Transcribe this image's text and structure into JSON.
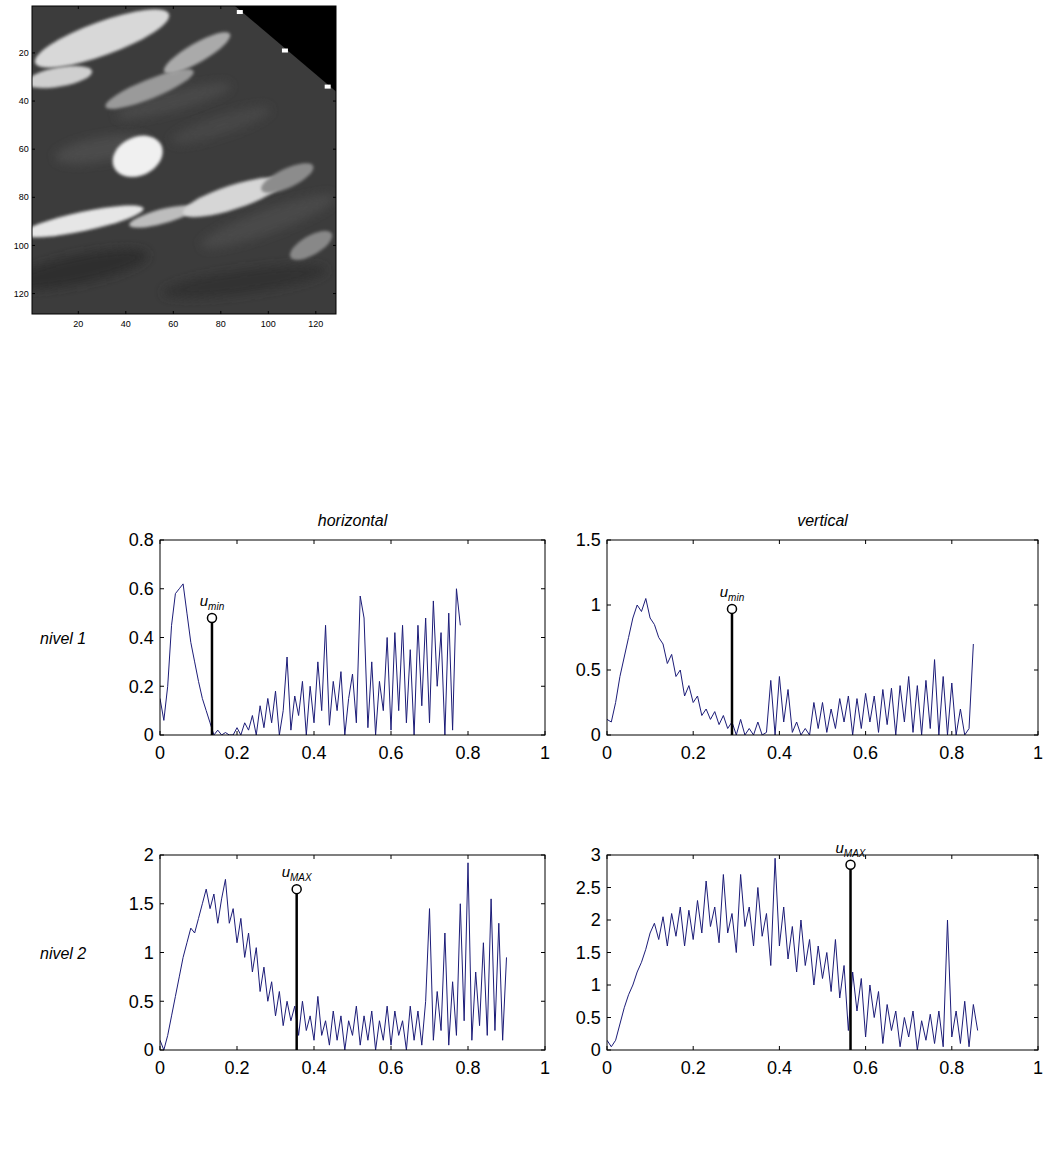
{
  "chart_data": [
    {
      "type": "image",
      "xlim": [
        0.5,
        128.5
      ],
      "ylim": [
        128.5,
        0.5
      ],
      "xticks": [
        20,
        40,
        60,
        80,
        100,
        120
      ],
      "yticks": [
        20,
        40,
        60,
        80,
        100,
        120
      ]
    },
    {
      "type": "line",
      "title": "horizontal",
      "ylabel": "nivel 1",
      "color": "#1c1c78",
      "xlim": [
        0,
        1
      ],
      "ylim": [
        0,
        0.8
      ],
      "xticks": [
        0,
        0.2,
        0.4,
        0.6,
        0.8,
        1
      ],
      "yticks": [
        0,
        0.2,
        0.4,
        0.6,
        0.8
      ],
      "x": [
        0,
        0.01,
        0.02,
        0.03,
        0.04,
        0.05,
        0.06,
        0.07,
        0.08,
        0.09,
        0.1,
        0.11,
        0.12,
        0.13,
        0.14,
        0.15,
        0.16,
        0.17,
        0.18,
        0.19,
        0.2,
        0.21,
        0.22,
        0.23,
        0.24,
        0.25,
        0.26,
        0.27,
        0.28,
        0.29,
        0.3,
        0.31,
        0.32,
        0.33,
        0.34,
        0.35,
        0.36,
        0.37,
        0.38,
        0.39,
        0.4,
        0.41,
        0.42,
        0.43,
        0.44,
        0.45,
        0.46,
        0.47,
        0.48,
        0.49,
        0.5,
        0.51,
        0.52,
        0.53,
        0.54,
        0.55,
        0.56,
        0.57,
        0.58,
        0.59,
        0.6,
        0.61,
        0.62,
        0.63,
        0.64,
        0.65,
        0.66,
        0.67,
        0.68,
        0.69,
        0.7,
        0.71,
        0.72,
        0.73,
        0.74,
        0.75,
        0.76,
        0.77,
        0.78
      ],
      "values": [
        0.15,
        0.06,
        0.2,
        0.45,
        0.58,
        0.6,
        0.62,
        0.5,
        0.38,
        0.3,
        0.22,
        0.15,
        0.1,
        0.05,
        0,
        0.02,
        0,
        0.01,
        0,
        0,
        0.03,
        0,
        0.05,
        0.02,
        0.08,
        0,
        0.12,
        0.03,
        0.15,
        0.05,
        0.18,
        0,
        0.1,
        0.32,
        0.02,
        0.16,
        0.08,
        0.22,
        0,
        0.2,
        0.05,
        0.3,
        0.1,
        0.45,
        0.04,
        0.22,
        0.1,
        0.26,
        0,
        0.15,
        0.25,
        0.05,
        0.57,
        0.48,
        0.03,
        0.3,
        0,
        0.22,
        0.1,
        0.4,
        0.02,
        0.42,
        0.1,
        0.45,
        0.05,
        0.35,
        0,
        0.45,
        0.12,
        0.48,
        0.05,
        0.55,
        0.2,
        0.42,
        0,
        0.5,
        0.02,
        0.6,
        0.45
      ],
      "annotations": [
        {
          "text": "u",
          "sub": "min",
          "x": 0.135,
          "y": 0.48
        }
      ]
    },
    {
      "type": "line",
      "title": "vertical",
      "color": "#1c1c78",
      "xlim": [
        0,
        1
      ],
      "ylim": [
        0,
        1.5
      ],
      "xticks": [
        0,
        0.2,
        0.4,
        0.6,
        0.8,
        1
      ],
      "yticks": [
        0,
        0.5,
        1,
        1.5
      ],
      "x": [
        0,
        0.01,
        0.02,
        0.03,
        0.04,
        0.05,
        0.06,
        0.07,
        0.08,
        0.09,
        0.1,
        0.11,
        0.12,
        0.13,
        0.14,
        0.15,
        0.16,
        0.17,
        0.18,
        0.19,
        0.2,
        0.21,
        0.22,
        0.23,
        0.24,
        0.25,
        0.26,
        0.27,
        0.28,
        0.29,
        0.3,
        0.31,
        0.32,
        0.33,
        0.34,
        0.35,
        0.36,
        0.37,
        0.38,
        0.39,
        0.4,
        0.41,
        0.42,
        0.43,
        0.44,
        0.45,
        0.46,
        0.47,
        0.48,
        0.49,
        0.5,
        0.51,
        0.52,
        0.53,
        0.54,
        0.55,
        0.56,
        0.57,
        0.58,
        0.59,
        0.6,
        0.61,
        0.62,
        0.63,
        0.64,
        0.65,
        0.66,
        0.67,
        0.68,
        0.69,
        0.7,
        0.71,
        0.72,
        0.73,
        0.74,
        0.75,
        0.76,
        0.77,
        0.78,
        0.79,
        0.8,
        0.81,
        0.82,
        0.83,
        0.84,
        0.85
      ],
      "values": [
        0.12,
        0.1,
        0.25,
        0.45,
        0.6,
        0.75,
        0.9,
        1,
        0.95,
        1.05,
        0.9,
        0.85,
        0.75,
        0.7,
        0.55,
        0.62,
        0.45,
        0.5,
        0.3,
        0.38,
        0.25,
        0.3,
        0.15,
        0.2,
        0.12,
        0.18,
        0.08,
        0.15,
        0.05,
        0.1,
        0,
        0.12,
        0,
        0.05,
        0,
        0.1,
        0,
        0.02,
        0.42,
        0,
        0.45,
        0.1,
        0.35,
        0.02,
        0.1,
        0,
        0.05,
        0,
        0.25,
        0.05,
        0.25,
        0.02,
        0.2,
        0.05,
        0.28,
        0.1,
        0.3,
        0,
        0.28,
        0.05,
        0.32,
        0.1,
        0.3,
        0.02,
        0.35,
        0.08,
        0.36,
        0,
        0.38,
        0.1,
        0.45,
        0.02,
        0.38,
        0,
        0.42,
        0.05,
        0.58,
        0,
        0.45,
        0,
        0.4,
        0,
        0.2,
        0,
        0.05,
        0.7
      ],
      "annotations": [
        {
          "text": "u",
          "sub": "min",
          "x": 0.29,
          "y": 0.97
        }
      ]
    },
    {
      "type": "line",
      "ylabel": "nivel 2",
      "color": "#1c1c78",
      "xlim": [
        0,
        1
      ],
      "ylim": [
        0,
        2
      ],
      "xticks": [
        0,
        0.2,
        0.4,
        0.6,
        0.8,
        1
      ],
      "yticks": [
        0,
        0.5,
        1,
        1.5,
        2
      ],
      "x": [
        0,
        0.01,
        0.02,
        0.03,
        0.04,
        0.05,
        0.06,
        0.07,
        0.08,
        0.09,
        0.1,
        0.11,
        0.12,
        0.13,
        0.14,
        0.15,
        0.16,
        0.17,
        0.18,
        0.19,
        0.2,
        0.21,
        0.22,
        0.23,
        0.24,
        0.25,
        0.26,
        0.27,
        0.28,
        0.29,
        0.3,
        0.31,
        0.32,
        0.33,
        0.34,
        0.35,
        0.36,
        0.37,
        0.38,
        0.39,
        0.4,
        0.41,
        0.42,
        0.43,
        0.44,
        0.45,
        0.46,
        0.47,
        0.48,
        0.49,
        0.5,
        0.51,
        0.52,
        0.53,
        0.54,
        0.55,
        0.56,
        0.57,
        0.58,
        0.59,
        0.6,
        0.61,
        0.62,
        0.63,
        0.64,
        0.65,
        0.66,
        0.67,
        0.68,
        0.69,
        0.7,
        0.71,
        0.72,
        0.73,
        0.74,
        0.75,
        0.76,
        0.77,
        0.78,
        0.79,
        0.8,
        0.81,
        0.82,
        0.83,
        0.84,
        0.85,
        0.86,
        0.87,
        0.88,
        0.89,
        0.9
      ],
      "values": [
        0.1,
        0,
        0.15,
        0.35,
        0.55,
        0.75,
        0.95,
        1.1,
        1.25,
        1.2,
        1.35,
        1.5,
        1.65,
        1.45,
        1.6,
        1.3,
        1.55,
        1.75,
        1.3,
        1.45,
        1.1,
        1.35,
        0.95,
        1.2,
        0.8,
        1.05,
        0.6,
        0.85,
        0.5,
        0.7,
        0.35,
        0.6,
        0.25,
        0.5,
        0.3,
        0.45,
        0.15,
        0.5,
        0.2,
        0.35,
        0.1,
        0.55,
        0.15,
        0.3,
        0.05,
        0.4,
        0.1,
        0.35,
        0,
        0.3,
        0.15,
        0.45,
        0.05,
        0.35,
        0.1,
        0.4,
        0,
        0.3,
        0.1,
        0.45,
        0.05,
        0.4,
        0.15,
        0.3,
        0,
        0.45,
        0.1,
        0.4,
        0.05,
        0.5,
        1.45,
        0.1,
        0.6,
        0.2,
        1.2,
        0.05,
        0.7,
        0.15,
        1.5,
        0.3,
        1.92,
        0.1,
        0.8,
        0.25,
        1.1,
        0.15,
        1.55,
        0.2,
        1.3,
        0.1,
        0.95
      ],
      "annotations": [
        {
          "text": "u",
          "sub": "MAX",
          "x": 0.355,
          "y": 1.65
        }
      ]
    },
    {
      "type": "line",
      "color": "#1c1c78",
      "xlim": [
        0,
        1
      ],
      "ylim": [
        0,
        3
      ],
      "xticks": [
        0,
        0.2,
        0.4,
        0.6,
        0.8,
        1
      ],
      "yticks": [
        0,
        0.5,
        1,
        1.5,
        2,
        2.5,
        3
      ],
      "x": [
        0,
        0.01,
        0.02,
        0.03,
        0.04,
        0.05,
        0.06,
        0.07,
        0.08,
        0.09,
        0.1,
        0.11,
        0.12,
        0.13,
        0.14,
        0.15,
        0.16,
        0.17,
        0.18,
        0.19,
        0.2,
        0.21,
        0.22,
        0.23,
        0.24,
        0.25,
        0.26,
        0.27,
        0.28,
        0.29,
        0.3,
        0.31,
        0.32,
        0.33,
        0.34,
        0.35,
        0.36,
        0.37,
        0.38,
        0.39,
        0.4,
        0.41,
        0.42,
        0.43,
        0.44,
        0.45,
        0.46,
        0.47,
        0.48,
        0.49,
        0.5,
        0.51,
        0.52,
        0.53,
        0.54,
        0.55,
        0.56,
        0.57,
        0.58,
        0.59,
        0.6,
        0.61,
        0.62,
        0.63,
        0.64,
        0.65,
        0.66,
        0.67,
        0.68,
        0.69,
        0.7,
        0.71,
        0.72,
        0.73,
        0.74,
        0.75,
        0.76,
        0.77,
        0.78,
        0.79,
        0.8,
        0.81,
        0.82,
        0.83,
        0.84,
        0.85,
        0.86
      ],
      "values": [
        0.15,
        0.05,
        0.15,
        0.4,
        0.65,
        0.85,
        1,
        1.2,
        1.35,
        1.55,
        1.8,
        1.95,
        1.7,
        2.05,
        1.6,
        2.1,
        1.75,
        2.2,
        1.6,
        2.15,
        1.7,
        2.3,
        1.8,
        2.6,
        1.9,
        2.2,
        1.65,
        2.7,
        1.8,
        2.1,
        1.5,
        2.7,
        1.9,
        2.2,
        1.6,
        2.5,
        1.75,
        2.1,
        1.3,
        2.95,
        1.6,
        2.2,
        1.4,
        1.9,
        1.2,
        2,
        1.3,
        1.7,
        1,
        1.6,
        1.1,
        1.5,
        0.9,
        1.7,
        0.8,
        1.3,
        0.3,
        1.2,
        0.6,
        1.1,
        0.2,
        1,
        0.5,
        0.9,
        0.1,
        0.7,
        0.3,
        0.6,
        0.05,
        0.5,
        0.2,
        0.6,
        0,
        0.45,
        0.15,
        0.55,
        0.1,
        0.6,
        0.05,
        2,
        0.2,
        0.6,
        0.1,
        0.75,
        0.05,
        0.7,
        0.3
      ],
      "annotations": [
        {
          "text": "u",
          "sub": "MAX",
          "x": 0.565,
          "y": 2.85
        }
      ]
    }
  ]
}
